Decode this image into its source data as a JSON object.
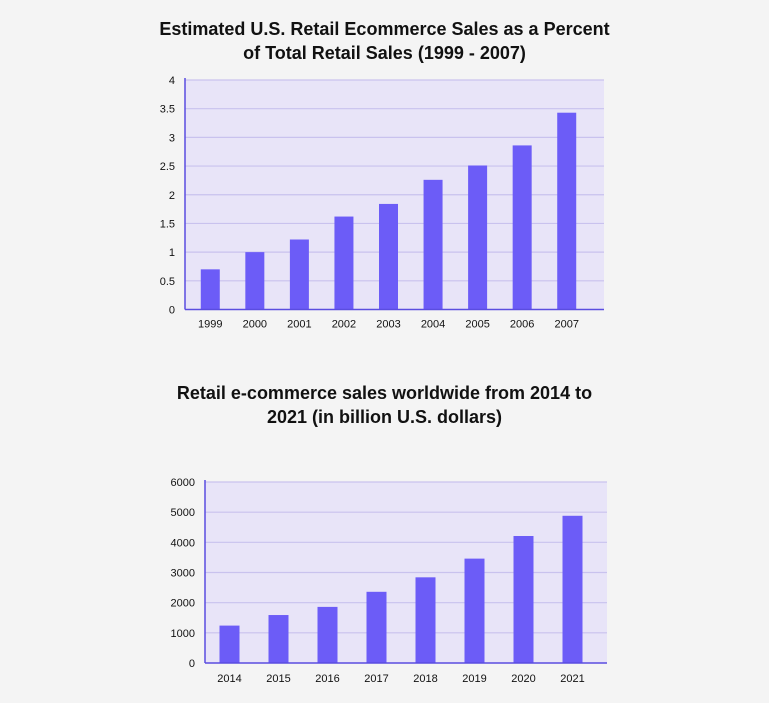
{
  "colors": {
    "background": "#f4f4f4",
    "plot_background": "#e8e4f8",
    "gridline": "#c9c2ee",
    "axis": "#5a4de0",
    "bar": "#6c5cf7"
  },
  "chart_data": [
    {
      "type": "bar",
      "title_lines": [
        "Estimated U.S. Retail Ecommerce Sales as a Percent",
        "of Total Retail Sales (1999 - 2007)"
      ],
      "categories": [
        "1999",
        "2000",
        "2001",
        "2002",
        "2003",
        "2004",
        "2005",
        "2006",
        "2007"
      ],
      "values": [
        0.7,
        1.0,
        1.22,
        1.62,
        1.84,
        2.26,
        2.51,
        2.86,
        3.43
      ],
      "ylim": [
        0,
        4
      ],
      "yticks": [
        "0",
        "0.5",
        "1",
        "1.5",
        "2",
        "2.5",
        "3",
        "3.5",
        "4"
      ],
      "ytick_values": [
        0,
        0.5,
        1,
        1.5,
        2,
        2.5,
        3,
        3.5,
        4
      ],
      "xlabel": "",
      "ylabel": "",
      "grid": true,
      "legend": "none"
    },
    {
      "type": "bar",
      "title_lines": [
        "Retail e-commerce sales worldwide from 2014 to",
        "2021 (in billion U.S. dollars)"
      ],
      "categories": [
        "2014",
        "2015",
        "2016",
        "2017",
        "2018",
        "2019",
        "2020",
        "2021"
      ],
      "values": [
        1240,
        1590,
        1860,
        2360,
        2840,
        3460,
        4210,
        4880
      ],
      "ylim": [
        0,
        6000
      ],
      "yticks": [
        "0",
        "1000",
        "2000",
        "3000",
        "4000",
        "5000",
        "6000"
      ],
      "ytick_values": [
        0,
        1000,
        2000,
        3000,
        4000,
        5000,
        6000
      ],
      "xlabel": "",
      "ylabel": "",
      "grid": true,
      "legend": "none"
    }
  ]
}
